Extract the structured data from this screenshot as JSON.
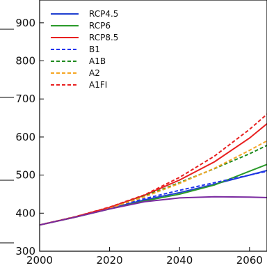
{
  "chart_data": {
    "type": "line",
    "title": "",
    "xlabel": "",
    "ylabel": "",
    "xlim": [
      2000,
      2065
    ],
    "ylim": [
      300,
      960
    ],
    "xticks": [
      2000,
      2020,
      2040,
      2060
    ],
    "yticks": [
      300,
      400,
      500,
      600,
      700,
      800,
      900
    ],
    "grid": false,
    "legend_position": "top-left",
    "series": [
      {
        "name": "RCP4.5",
        "color": "#1f3fd0",
        "style": "solid",
        "x": [
          2000,
          2010,
          2020,
          2030,
          2040,
          2050,
          2060,
          2065
        ],
        "y": [
          369,
          389,
          412,
          435,
          454,
          476,
          500,
          512
        ]
      },
      {
        "name": "RCP6",
        "color": "#2a9a2a",
        "style": "solid",
        "x": [
          2000,
          2010,
          2020,
          2030,
          2040,
          2050,
          2060,
          2065
        ],
        "y": [
          369,
          389,
          411,
          432,
          450,
          474,
          510,
          528
        ]
      },
      {
        "name": "RCP8.5",
        "color": "#e82020",
        "style": "solid",
        "x": [
          2000,
          2010,
          2020,
          2030,
          2040,
          2050,
          2060,
          2065
        ],
        "y": [
          369,
          390,
          415,
          447,
          487,
          535,
          597,
          635
        ]
      },
      {
        "name": "B1",
        "color": "#2233ee",
        "style": "dashed",
        "x": [
          2000,
          2010,
          2020,
          2030,
          2040,
          2050,
          2060,
          2065
        ],
        "y": [
          369,
          390,
          413,
          438,
          460,
          480,
          500,
          510
        ]
      },
      {
        "name": "A1B",
        "color": "#1f8a1f",
        "style": "dashed",
        "x": [
          2000,
          2010,
          2020,
          2030,
          2040,
          2050,
          2060,
          2065
        ],
        "y": [
          369,
          390,
          415,
          445,
          480,
          517,
          556,
          578
        ]
      },
      {
        "name": "A2",
        "color": "#f5a623",
        "style": "dashed",
        "x": [
          2000,
          2010,
          2020,
          2030,
          2040,
          2050,
          2060,
          2065
        ],
        "y": [
          369,
          389,
          413,
          443,
          478,
          518,
          565,
          590
        ]
      },
      {
        "name": "A1FI",
        "color": "#e82020",
        "style": "dashed",
        "x": [
          2000,
          2010,
          2020,
          2030,
          2040,
          2050,
          2060,
          2065
        ],
        "y": [
          369,
          390,
          416,
          448,
          494,
          550,
          620,
          660
        ]
      },
      {
        "name": "",
        "color": "#7a2aa0",
        "style": "solid",
        "x": [
          2000,
          2010,
          2020,
          2030,
          2040,
          2050,
          2060,
          2065
        ],
        "y": [
          369,
          389,
          411,
          430,
          440,
          443,
          442,
          441
        ]
      }
    ]
  }
}
